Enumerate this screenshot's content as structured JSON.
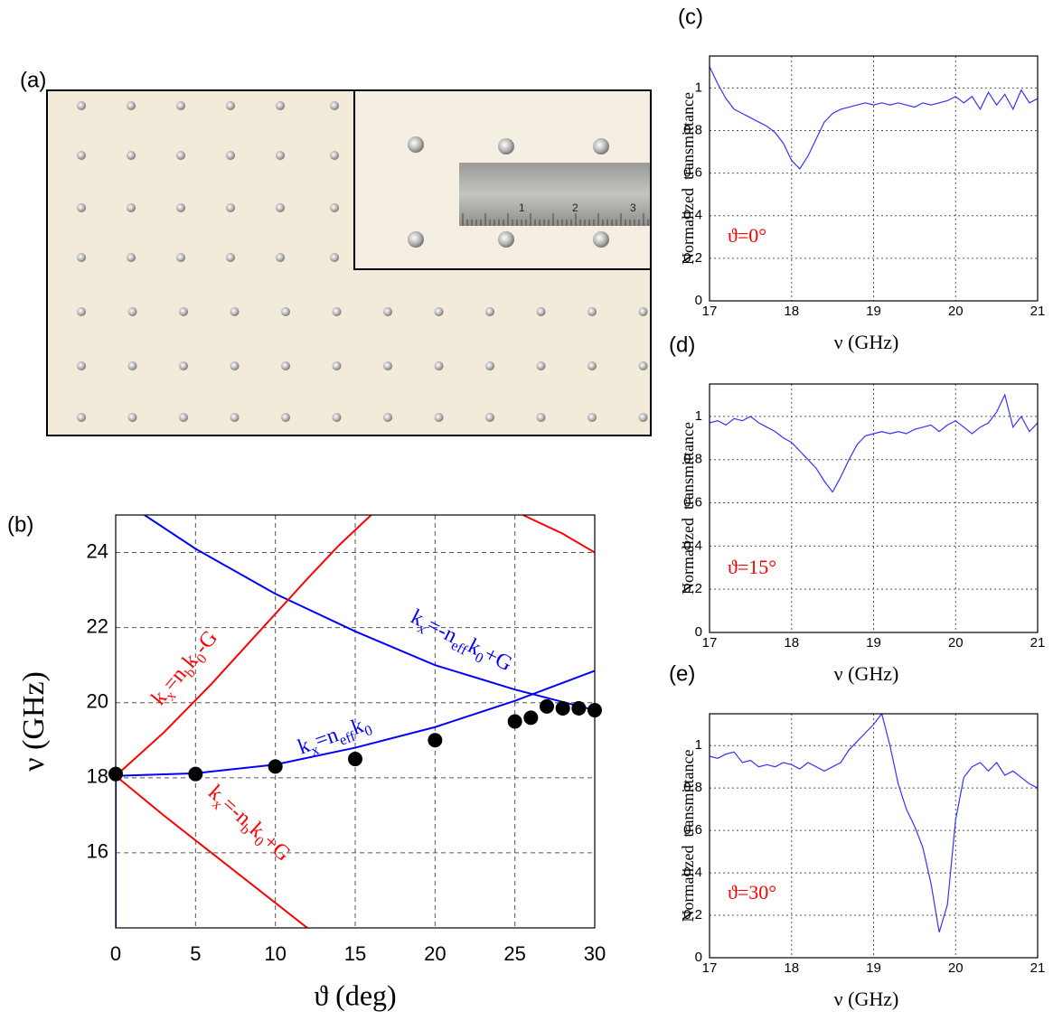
{
  "photo": {
    "label": "(a)",
    "ruler_labels": [
      "1",
      "2",
      "3"
    ]
  },
  "chart_data": [
    {
      "type": "line",
      "label": "(b)",
      "xlabel": "ϑ (deg)",
      "ylabel": "ν (GHz)",
      "xlim": [
        0,
        30
      ],
      "ylim": [
        14,
        25
      ],
      "xticks": [
        0,
        5,
        10,
        15,
        20,
        25,
        30
      ],
      "yticks": [
        16,
        18,
        20,
        22,
        24
      ],
      "grid": "dashed",
      "series": [
        {
          "color": "#0000ff",
          "x": [
            0,
            5,
            10,
            15,
            20,
            25,
            30
          ],
          "values": [
            18.05,
            18.12,
            18.35,
            18.8,
            19.35,
            20.05,
            20.85
          ]
        },
        {
          "color": "#0000ff",
          "x": [
            1.8,
            5,
            10,
            15,
            20,
            25,
            30
          ],
          "values": [
            25,
            24.1,
            22.9,
            21.9,
            21.0,
            20.35,
            19.8
          ]
        },
        {
          "color": "#ff0000",
          "x": [
            0,
            3,
            6,
            9,
            12,
            14,
            16
          ],
          "values": [
            18.05,
            19.2,
            20.5,
            21.9,
            23.3,
            24.2,
            25
          ]
        },
        {
          "color": "#ff0000",
          "x": [
            0,
            3,
            6,
            9,
            12
          ],
          "values": [
            18.05,
            17.0,
            16.0,
            15.0,
            14.0
          ]
        },
        {
          "color": "#ff0000",
          "x": [
            25.5,
            28,
            30
          ],
          "values": [
            25,
            24.5,
            24.0
          ]
        },
        {
          "color": "#0000ff",
          "x": [
            0,
            0
          ],
          "values": [
            18.05,
            14
          ]
        },
        {
          "color": "#000000",
          "mode": "markers",
          "x": [
            0,
            5,
            10,
            15,
            20,
            25,
            26,
            27,
            28,
            29,
            30
          ],
          "values": [
            18.1,
            18.1,
            18.3,
            18.5,
            19.0,
            19.5,
            19.6,
            19.9,
            19.85,
            19.85,
            19.8
          ]
        }
      ],
      "annotations": [
        {
          "color": "#ff0000",
          "segments": [
            "k",
            "x",
            "=n",
            "b",
            "k",
            "0",
            "-G"
          ]
        },
        {
          "color": "#0000ff",
          "segments": [
            "k",
            "x",
            "=-n",
            "eff",
            "k",
            "0",
            "+G"
          ]
        },
        {
          "color": "#0000ff",
          "segments": [
            "k",
            "x",
            "=n",
            "eff",
            "k",
            "0"
          ]
        },
        {
          "color": "#ff0000",
          "segments": [
            "k",
            "x",
            "=-n",
            "b",
            "k",
            "0",
            "+G"
          ]
        }
      ]
    },
    {
      "type": "line",
      "label": "(c)",
      "xlabel": "ν (GHz)",
      "ylabel": "Normalized  transmittance",
      "annotation": "ϑ=0°",
      "xlim": [
        17,
        21
      ],
      "ylim": [
        0,
        1.15
      ],
      "xticks": [
        17,
        18,
        19,
        20,
        21
      ],
      "yticks": [
        0,
        0.2,
        0.4,
        0.6,
        0.8,
        1
      ],
      "grid": "dotted",
      "series": [
        {
          "color": "#3333ff",
          "x": [
            17,
            17.1,
            17.2,
            17.3,
            17.4,
            17.5,
            17.6,
            17.7,
            17.8,
            17.9,
            18,
            18.1,
            18.2,
            18.3,
            18.4,
            18.5,
            18.6,
            18.7,
            18.8,
            18.9,
            19,
            19.1,
            19.2,
            19.3,
            19.4,
            19.5,
            19.6,
            19.7,
            19.8,
            19.9,
            20,
            20.1,
            20.2,
            20.3,
            20.4,
            20.5,
            20.6,
            20.7,
            20.8,
            20.9,
            21
          ],
          "values": [
            1.1,
            1.02,
            0.95,
            0.9,
            0.88,
            0.86,
            0.84,
            0.82,
            0.79,
            0.74,
            0.66,
            0.62,
            0.68,
            0.76,
            0.84,
            0.88,
            0.9,
            0.91,
            0.92,
            0.93,
            0.92,
            0.93,
            0.92,
            0.93,
            0.92,
            0.91,
            0.93,
            0.92,
            0.93,
            0.94,
            0.96,
            0.93,
            0.96,
            0.9,
            0.98,
            0.92,
            0.97,
            0.9,
            0.99,
            0.93,
            0.95
          ]
        }
      ]
    },
    {
      "type": "line",
      "label": "(d)",
      "xlabel": "ν (GHz)",
      "ylabel": "Normalized  transmittance",
      "annotation": "ϑ=15°",
      "xlim": [
        17,
        21
      ],
      "ylim": [
        0,
        1.15
      ],
      "xticks": [
        17,
        18,
        19,
        20,
        21
      ],
      "yticks": [
        0,
        0.2,
        0.4,
        0.6,
        0.8,
        1
      ],
      "grid": "dotted",
      "series": [
        {
          "color": "#3333ff",
          "x": [
            17,
            17.1,
            17.2,
            17.3,
            17.4,
            17.5,
            17.6,
            17.7,
            17.8,
            17.9,
            18,
            18.1,
            18.2,
            18.3,
            18.4,
            18.5,
            18.6,
            18.7,
            18.8,
            18.9,
            19,
            19.1,
            19.2,
            19.3,
            19.4,
            19.5,
            19.6,
            19.7,
            19.8,
            19.9,
            20,
            20.1,
            20.2,
            20.3,
            20.4,
            20.5,
            20.6,
            20.7,
            20.8,
            20.9,
            21
          ],
          "values": [
            0.97,
            0.98,
            0.96,
            0.99,
            0.98,
            1.0,
            0.97,
            0.95,
            0.93,
            0.9,
            0.88,
            0.84,
            0.8,
            0.76,
            0.7,
            0.65,
            0.72,
            0.8,
            0.87,
            0.91,
            0.92,
            0.93,
            0.92,
            0.93,
            0.92,
            0.94,
            0.95,
            0.96,
            0.93,
            0.96,
            0.98,
            0.95,
            0.92,
            0.95,
            0.97,
            1.02,
            1.1,
            0.95,
            1.0,
            0.93,
            0.97
          ]
        }
      ]
    },
    {
      "type": "line",
      "label": "(e)",
      "xlabel": "ν (GHz)",
      "ylabel": "Normalized  transmittance",
      "annotation": "ϑ=30°",
      "xlim": [
        17,
        21
      ],
      "ylim": [
        0,
        1.15
      ],
      "xticks": [
        17,
        18,
        19,
        20,
        21
      ],
      "yticks": [
        0,
        0.2,
        0.4,
        0.6,
        0.8,
        1
      ],
      "grid": "dotted",
      "series": [
        {
          "color": "#3333ff",
          "x": [
            17,
            17.1,
            17.2,
            17.3,
            17.4,
            17.5,
            17.6,
            17.7,
            17.8,
            17.9,
            18,
            18.1,
            18.2,
            18.3,
            18.4,
            18.5,
            18.6,
            18.7,
            18.8,
            18.9,
            19,
            19.1,
            19.2,
            19.3,
            19.4,
            19.5,
            19.6,
            19.7,
            19.8,
            19.9,
            20,
            20.1,
            20.2,
            20.3,
            20.4,
            20.5,
            20.6,
            20.7,
            20.8,
            20.9,
            21
          ],
          "values": [
            0.95,
            0.94,
            0.96,
            0.97,
            0.92,
            0.93,
            0.9,
            0.91,
            0.9,
            0.92,
            0.91,
            0.89,
            0.92,
            0.9,
            0.88,
            0.9,
            0.92,
            0.98,
            1.02,
            1.06,
            1.1,
            1.15,
            1.0,
            0.82,
            0.7,
            0.62,
            0.52,
            0.35,
            0.12,
            0.25,
            0.65,
            0.85,
            0.9,
            0.92,
            0.88,
            0.92,
            0.86,
            0.88,
            0.85,
            0.82,
            0.8
          ]
        }
      ]
    }
  ]
}
